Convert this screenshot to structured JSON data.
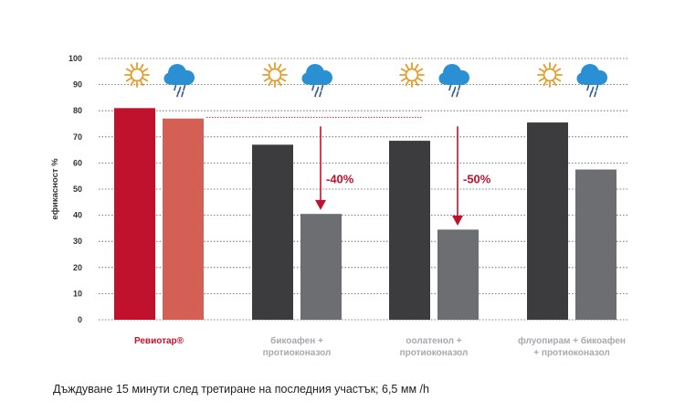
{
  "chart_data": {
    "type": "bar",
    "ylabel": "ефикасност %",
    "ylim": [
      0,
      100
    ],
    "y_ticks": [
      0,
      10,
      20,
      30,
      40,
      50,
      60,
      70,
      80,
      90,
      100
    ],
    "grid": true,
    "categories": [
      {
        "lines": [
          "Ревиотар®"
        ],
        "color": "#c0122d"
      },
      {
        "lines": [
          "бикоафен +",
          "протиоконазол"
        ],
        "color": "#a7a9ac"
      },
      {
        "lines": [
          "оолатенол +",
          "протиоконазол"
        ],
        "color": "#a7a9ac"
      },
      {
        "lines": [
          "флуопирам + бикоафен",
          "+ протиоконазол"
        ],
        "color": "#a7a9ac"
      }
    ],
    "series": [
      {
        "condition": "sun-icon",
        "values": [
          81,
          67,
          68.5,
          75.5
        ],
        "colors": [
          "#c0122d",
          "#3c3c3e",
          "#3c3c3e",
          "#3c3c3e"
        ]
      },
      {
        "condition": "rain-cloud-icon",
        "values": [
          77,
          40.5,
          34.5,
          57.5
        ],
        "colors": [
          "#d45f55",
          "#6d6e71",
          "#6d6e71",
          "#6d6e71"
        ]
      }
    ],
    "annotations": [
      {
        "category": 1,
        "text": "-40%",
        "from": 74,
        "to": 42
      },
      {
        "category": 2,
        "text": "-50%",
        "from": 74,
        "to": 36
      }
    ],
    "reference_line": {
      "value": 77.5,
      "color": "#e0203f"
    },
    "icon_colors": {
      "sun": "#e89b27",
      "cloud": "#2a8fd3",
      "rain": "#2f5f8f"
    },
    "annotation_color": "#c0122d"
  },
  "caption": "Дъждуване 15 минути след третиране на последния участък; 6,5 мм /h"
}
